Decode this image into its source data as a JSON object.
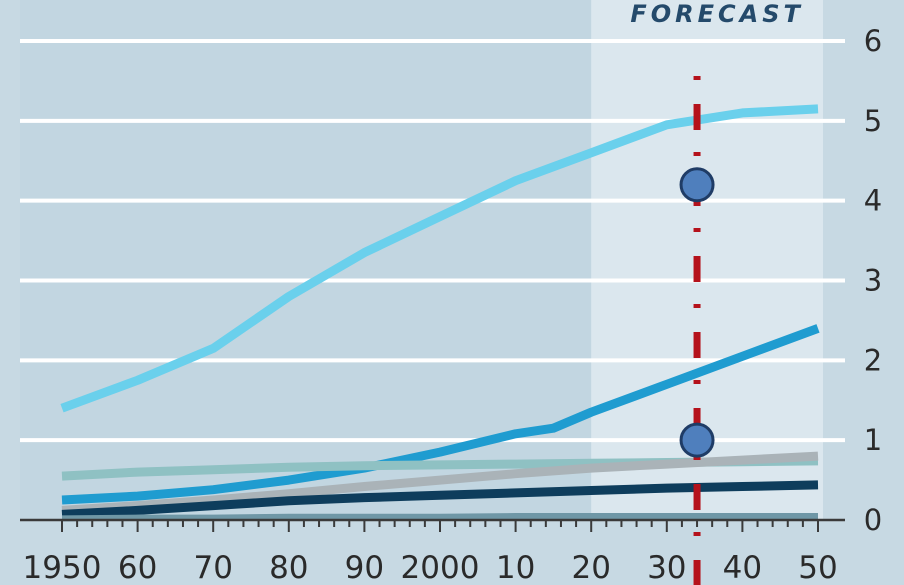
{
  "chart_data": {
    "type": "line",
    "title": "",
    "xlabel": "",
    "ylabel": "",
    "xlim": [
      1950,
      2050
    ],
    "ylim": [
      0,
      6
    ],
    "x_ticks": [
      1950,
      1960,
      1970,
      1980,
      1990,
      2000,
      2010,
      2020,
      2030,
      2040,
      2050
    ],
    "x_tick_labels": [
      "1950",
      "60",
      "70",
      "80",
      "90",
      "2000",
      "10",
      "20",
      "30",
      "40",
      "50"
    ],
    "y_ticks": [
      0,
      1,
      2,
      3,
      4,
      5,
      6
    ],
    "y_tick_labels": [
      "0",
      "1",
      "2",
      "3",
      "4",
      "5",
      "6"
    ],
    "grid": true,
    "forecast": {
      "label": "FORECAST",
      "start": 2020,
      "end": 2050,
      "color": "#dbe7ee"
    },
    "reference_line": {
      "x": 2034,
      "color": "#b5121b",
      "style": "dashed"
    },
    "markers": [
      {
        "x": 2034,
        "y": 4.2,
        "color": "#4f7fbd"
      },
      {
        "x": 2034,
        "y": 1.0,
        "color": "#4f7fbd"
      }
    ],
    "series": [
      {
        "color": "#6ad0ec",
        "x": [
          1950,
          1960,
          1970,
          1980,
          1990,
          2000,
          2010,
          2020,
          2030,
          2040,
          2050
        ],
        "y": [
          1.4,
          1.75,
          2.15,
          2.8,
          3.35,
          3.8,
          4.25,
          4.6,
          4.95,
          5.1,
          5.15
        ]
      },
      {
        "color": "#1f9cd0",
        "x": [
          1950,
          1960,
          1970,
          1980,
          1990,
          2000,
          2010,
          2015,
          2020,
          2030,
          2040,
          2050
        ],
        "y": [
          0.25,
          0.3,
          0.38,
          0.5,
          0.65,
          0.85,
          1.08,
          1.15,
          1.35,
          1.7,
          2.05,
          2.4
        ]
      },
      {
        "color": "#8fc1c3",
        "x": [
          1950,
          1960,
          1970,
          1980,
          1990,
          2000,
          2010,
          2020,
          2030,
          2040,
          2050
        ],
        "y": [
          0.55,
          0.6,
          0.63,
          0.66,
          0.68,
          0.69,
          0.7,
          0.71,
          0.72,
          0.73,
          0.74
        ]
      },
      {
        "color": "#aab3b8",
        "x": [
          1950,
          1960,
          1970,
          1980,
          1990,
          2000,
          2010,
          2020,
          2030,
          2040,
          2050
        ],
        "y": [
          0.12,
          0.18,
          0.25,
          0.33,
          0.42,
          0.5,
          0.58,
          0.65,
          0.7,
          0.75,
          0.8
        ]
      },
      {
        "color": "#0e3d5c",
        "x": [
          1950,
          1960,
          1970,
          1980,
          1990,
          2000,
          2010,
          2020,
          2030,
          2040,
          2050
        ],
        "y": [
          0.07,
          0.12,
          0.18,
          0.24,
          0.28,
          0.31,
          0.34,
          0.37,
          0.4,
          0.42,
          0.44
        ]
      },
      {
        "color": "#6f97a6",
        "x": [
          1950,
          1960,
          1970,
          1980,
          1990,
          2000,
          2010,
          2020,
          2030,
          2040,
          2050
        ],
        "y": [
          0.02,
          0.03,
          0.03,
          0.04,
          0.04,
          0.04,
          0.05,
          0.05,
          0.05,
          0.05,
          0.05
        ]
      }
    ]
  }
}
